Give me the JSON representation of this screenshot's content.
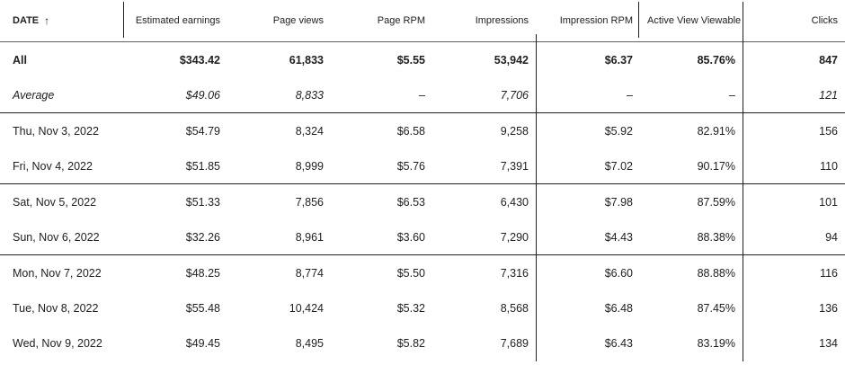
{
  "columns": [
    {
      "label": "DATE"
    },
    {
      "label": "Estimated earnings"
    },
    {
      "label": "Page views"
    },
    {
      "label": "Page RPM"
    },
    {
      "label": "Impressions"
    },
    {
      "label": "Impression RPM"
    },
    {
      "label": "Active View Viewable"
    },
    {
      "label": "Clicks"
    }
  ],
  "sort": {
    "column": "DATE",
    "icon": "arrow-up-icon",
    "glyph": "↑"
  },
  "summary": {
    "all": [
      "All",
      "$343.42",
      "61,833",
      "$5.55",
      "53,942",
      "$6.37",
      "85.76%",
      "847"
    ],
    "average": [
      "Average",
      "$49.06",
      "8,833",
      "–",
      "7,706",
      "–",
      "–",
      "121"
    ]
  },
  "rows": [
    [
      "Thu, Nov 3, 2022",
      "$54.79",
      "8,324",
      "$6.58",
      "9,258",
      "$5.92",
      "82.91%",
      "156"
    ],
    [
      "Fri, Nov 4, 2022",
      "$51.85",
      "8,999",
      "$5.76",
      "7,391",
      "$7.02",
      "90.17%",
      "110"
    ],
    [
      "Sat, Nov 5, 2022",
      "$51.33",
      "7,856",
      "$6.53",
      "6,430",
      "$7.98",
      "87.59%",
      "101"
    ],
    [
      "Sun, Nov 6, 2022",
      "$32.26",
      "8,961",
      "$3.60",
      "7,290",
      "$4.43",
      "88.38%",
      "94"
    ],
    [
      "Mon, Nov 7, 2022",
      "$48.25",
      "8,774",
      "$5.50",
      "7,316",
      "$6.60",
      "88.88%",
      "116"
    ],
    [
      "Tue, Nov 8, 2022",
      "$55.48",
      "10,424",
      "$5.32",
      "8,568",
      "$6.48",
      "87.45%",
      "136"
    ],
    [
      "Wed, Nov 9, 2022",
      "$49.45",
      "8,495",
      "$5.82",
      "7,689",
      "$6.43",
      "83.19%",
      "134"
    ]
  ]
}
